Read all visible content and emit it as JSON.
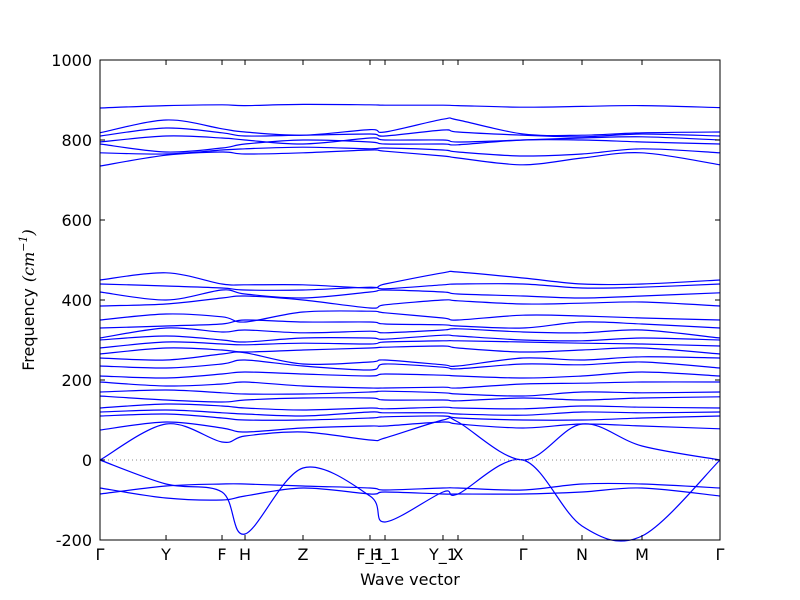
{
  "chart_data": {
    "type": "line",
    "title": "",
    "xlabel": "Wave vector",
    "ylabel": "Frequency",
    "ylabel_unit": "(cm^-1)",
    "ylim": [
      -200,
      1000
    ],
    "yticks": [
      -200,
      0,
      200,
      400,
      600,
      800,
      1000
    ],
    "xticks": [
      {
        "label": "Γ",
        "x": 0.0
      },
      {
        "label": "Y",
        "x": 0.1065
      },
      {
        "label": "F",
        "x": 0.1968
      },
      {
        "label": "H",
        "x": 0.2339
      },
      {
        "label": "Z",
        "x": 0.3274
      },
      {
        "label": "F_1",
        "x": 0.4355
      },
      {
        "label": "H_1",
        "x": 0.4597
      },
      {
        "label": "Y_1",
        "x": 0.5532
      },
      {
        "label": "X",
        "x": 0.5774
      },
      {
        "label": "Γ",
        "x": 0.6823
      },
      {
        "label": "N",
        "x": 0.7774
      },
      {
        "label": "M",
        "x": 0.8742
      },
      {
        "label": "Γ",
        "x": 1.0
      }
    ],
    "zero_line": true,
    "grid": false,
    "color": "#0000ff",
    "series": [
      {
        "x": [
          0,
          0.1065,
          0.1968,
          0.2339,
          0.3274,
          0.4355,
          0.4597,
          0.5532,
          0.5774,
          0.6823,
          0.7774,
          0.8742,
          1.0
        ],
        "values": [
          880,
          886,
          888,
          886,
          889,
          888,
          887,
          887,
          886,
          882,
          884,
          886,
          881
        ]
      },
      {
        "x": [
          0,
          0.1065,
          0.1968,
          0.2339,
          0.3274,
          0.4355,
          0.4597,
          0.5532,
          0.5774,
          0.6823,
          0.7774,
          0.8742,
          1.0
        ],
        "values": [
          818,
          850,
          828,
          820,
          812,
          826,
          820,
          852,
          850,
          815,
          812,
          818,
          820
        ]
      },
      {
        "x": [
          0,
          0.1065,
          0.1968,
          0.2339,
          0.3274,
          0.4355,
          0.4597,
          0.5532,
          0.5774,
          0.6823,
          0.7774,
          0.8742,
          1.0
        ],
        "values": [
          810,
          830,
          818,
          810,
          812,
          815,
          810,
          825,
          820,
          812,
          808,
          815,
          810
        ]
      },
      {
        "x": [
          0,
          0.1065,
          0.1968,
          0.2339,
          0.3274,
          0.4355,
          0.4597,
          0.5532,
          0.5774,
          0.6823,
          0.7774,
          0.8742,
          1.0
        ],
        "values": [
          795,
          810,
          805,
          800,
          790,
          805,
          800,
          800,
          795,
          800,
          805,
          808,
          800
        ]
      },
      {
        "x": [
          0,
          0.1065,
          0.1968,
          0.2339,
          0.3274,
          0.4355,
          0.4597,
          0.5532,
          0.5774,
          0.6823,
          0.7774,
          0.8742,
          1.0
        ],
        "values": [
          790,
          770,
          780,
          790,
          800,
          795,
          790,
          790,
          788,
          800,
          800,
          795,
          790
        ]
      },
      {
        "x": [
          0,
          0.1065,
          0.1968,
          0.2339,
          0.3274,
          0.4355,
          0.4597,
          0.5532,
          0.5774,
          0.6823,
          0.7774,
          0.8742,
          1.0
        ],
        "values": [
          768,
          765,
          775,
          778,
          782,
          778,
          780,
          775,
          770,
          760,
          765,
          778,
          768
        ]
      },
      {
        "x": [
          0,
          0.1065,
          0.1968,
          0.2339,
          0.3274,
          0.4355,
          0.4597,
          0.5532,
          0.5774,
          0.6823,
          0.7774,
          0.8742,
          1.0
        ],
        "values": [
          735,
          762,
          770,
          765,
          768,
          775,
          772,
          760,
          755,
          738,
          755,
          768,
          738
        ]
      },
      {
        "x": [
          0,
          0.1065,
          0.1968,
          0.2339,
          0.3274,
          0.4355,
          0.4597,
          0.5532,
          0.5774,
          0.6823,
          0.7774,
          0.8742,
          1.0
        ],
        "values": [
          450,
          468,
          440,
          438,
          438,
          430,
          440,
          468,
          470,
          455,
          440,
          440,
          450
        ]
      },
      {
        "x": [
          0,
          0.1065,
          0.1968,
          0.2339,
          0.3274,
          0.4355,
          0.4597,
          0.5532,
          0.5774,
          0.6823,
          0.7774,
          0.8742,
          1.0
        ],
        "values": [
          440,
          435,
          430,
          425,
          425,
          432,
          428,
          438,
          440,
          440,
          430,
          432,
          440
        ]
      },
      {
        "x": [
          0,
          0.1065,
          0.1968,
          0.2339,
          0.3274,
          0.4355,
          0.4597,
          0.5532,
          0.5774,
          0.6823,
          0.7774,
          0.8742,
          1.0
        ],
        "values": [
          420,
          400,
          425,
          415,
          405,
          420,
          425,
          420,
          415,
          410,
          405,
          410,
          418
        ]
      },
      {
        "x": [
          0,
          0.1065,
          0.1968,
          0.2339,
          0.3274,
          0.4355,
          0.4597,
          0.5532,
          0.5774,
          0.6823,
          0.7774,
          0.8742,
          1.0
        ],
        "values": [
          385,
          390,
          405,
          410,
          400,
          380,
          388,
          400,
          398,
          390,
          392,
          395,
          385
        ]
      },
      {
        "x": [
          0,
          0.1065,
          0.1968,
          0.2339,
          0.3274,
          0.4355,
          0.4597,
          0.5532,
          0.5774,
          0.6823,
          0.7774,
          0.8742,
          1.0
        ],
        "values": [
          350,
          365,
          358,
          345,
          370,
          372,
          368,
          355,
          350,
          362,
          360,
          355,
          350
        ]
      },
      {
        "x": [
          0,
          0.1065,
          0.1968,
          0.2339,
          0.3274,
          0.4355,
          0.4597,
          0.5532,
          0.5774,
          0.6823,
          0.7774,
          0.8742,
          1.0
        ],
        "values": [
          330,
          335,
          340,
          350,
          345,
          345,
          340,
          338,
          335,
          330,
          345,
          340,
          330
        ]
      },
      {
        "x": [
          0,
          0.1065,
          0.1968,
          0.2339,
          0.3274,
          0.4355,
          0.4597,
          0.5532,
          0.5774,
          0.6823,
          0.7774,
          0.8742,
          1.0
        ],
        "values": [
          305,
          330,
          320,
          325,
          318,
          322,
          318,
          325,
          328,
          320,
          318,
          325,
          305
        ]
      },
      {
        "x": [
          0,
          0.1065,
          0.1968,
          0.2339,
          0.3274,
          0.4355,
          0.4597,
          0.5532,
          0.5774,
          0.6823,
          0.7774,
          0.8742,
          1.0
        ],
        "values": [
          300,
          310,
          300,
          295,
          305,
          305,
          302,
          312,
          310,
          300,
          298,
          305,
          300
        ]
      },
      {
        "x": [
          0,
          0.1065,
          0.1968,
          0.2339,
          0.3274,
          0.4355,
          0.4597,
          0.5532,
          0.5774,
          0.6823,
          0.7774,
          0.8742,
          1.0
        ],
        "values": [
          280,
          295,
          290,
          288,
          292,
          290,
          295,
          298,
          298,
          295,
          292,
          290,
          285
        ]
      },
      {
        "x": [
          0,
          0.1065,
          0.1968,
          0.2339,
          0.3274,
          0.4355,
          0.4597,
          0.5532,
          0.5774,
          0.6823,
          0.7774,
          0.8742,
          1.0
        ],
        "values": [
          265,
          280,
          275,
          270,
          275,
          280,
          282,
          285,
          280,
          270,
          275,
          280,
          265
        ]
      },
      {
        "x": [
          0,
          0.1065,
          0.1968,
          0.2339,
          0.3274,
          0.4355,
          0.4597,
          0.5532,
          0.5774,
          0.6823,
          0.7774,
          0.8742,
          1.0
        ],
        "values": [
          255,
          250,
          265,
          268,
          240,
          245,
          250,
          238,
          235,
          255,
          250,
          258,
          255
        ]
      },
      {
        "x": [
          0,
          0.1065,
          0.1968,
          0.2339,
          0.3274,
          0.4355,
          0.4597,
          0.5532,
          0.5774,
          0.6823,
          0.7774,
          0.8742,
          1.0
        ],
        "values": [
          235,
          230,
          240,
          250,
          235,
          225,
          240,
          232,
          228,
          240,
          238,
          245,
          230
        ]
      },
      {
        "x": [
          0,
          0.1065,
          0.1968,
          0.2339,
          0.3274,
          0.4355,
          0.4597,
          0.5532,
          0.5774,
          0.6823,
          0.7774,
          0.8742,
          1.0
        ],
        "values": [
          210,
          205,
          215,
          220,
          215,
          210,
          215,
          212,
          210,
          205,
          210,
          220,
          210
        ]
      },
      {
        "x": [
          0,
          0.1065,
          0.1968,
          0.2339,
          0.3274,
          0.4355,
          0.4597,
          0.5532,
          0.5774,
          0.6823,
          0.7774,
          0.8742,
          1.0
        ],
        "values": [
          195,
          185,
          190,
          195,
          185,
          180,
          180,
          182,
          180,
          190,
          192,
          195,
          195
        ]
      },
      {
        "x": [
          0,
          0.1065,
          0.1968,
          0.2339,
          0.3274,
          0.4355,
          0.4597,
          0.5532,
          0.5774,
          0.6823,
          0.7774,
          0.8742,
          1.0
        ],
        "values": [
          170,
          175,
          168,
          165,
          165,
          170,
          172,
          168,
          165,
          160,
          170,
          168,
          170
        ]
      },
      {
        "x": [
          0,
          0.1065,
          0.1968,
          0.2339,
          0.3274,
          0.4355,
          0.4597,
          0.5532,
          0.5774,
          0.6823,
          0.7774,
          0.8742,
          1.0
        ],
        "values": [
          160,
          150,
          145,
          150,
          155,
          155,
          150,
          150,
          148,
          155,
          150,
          155,
          158
        ]
      },
      {
        "x": [
          0,
          0.1065,
          0.1968,
          0.2339,
          0.3274,
          0.4355,
          0.4597,
          0.5532,
          0.5774,
          0.6823,
          0.7774,
          0.8742,
          1.0
        ],
        "values": [
          130,
          140,
          135,
          130,
          125,
          130,
          128,
          132,
          130,
          128,
          135,
          132,
          130
        ]
      },
      {
        "x": [
          0,
          0.1065,
          0.1968,
          0.2339,
          0.3274,
          0.4355,
          0.4597,
          0.5532,
          0.5774,
          0.6823,
          0.7774,
          0.8742,
          1.0
        ],
        "values": [
          120,
          125,
          118,
          115,
          110,
          120,
          118,
          118,
          115,
          112,
          120,
          118,
          120
        ]
      },
      {
        "x": [
          0,
          0.1065,
          0.1968,
          0.2339,
          0.3274,
          0.4355,
          0.4597,
          0.5532,
          0.5774,
          0.6823,
          0.7774,
          0.8742,
          1.0
        ],
        "values": [
          110,
          115,
          105,
          100,
          100,
          105,
          108,
          110,
          105,
          100,
          100,
          105,
          110
        ]
      },
      {
        "x": [
          0,
          0.1065,
          0.1968,
          0.2339,
          0.3274,
          0.4355,
          0.4597,
          0.5532,
          0.5774,
          0.6823,
          0.7774,
          0.8742,
          1.0
        ],
        "values": [
          75,
          95,
          80,
          70,
          80,
          85,
          85,
          95,
          90,
          80,
          90,
          85,
          78
        ]
      },
      {
        "x": [
          0,
          0.1065,
          0.1968,
          0.2339,
          0.3274,
          0.4355,
          0.4597,
          0.5532,
          0.5774,
          0.6823,
          0.7774,
          0.8742,
          1.0
        ],
        "values": [
          0,
          90,
          45,
          60,
          70,
          50,
          55,
          100,
          95,
          0,
          90,
          35,
          0
        ]
      },
      {
        "x": [
          0,
          0.1065,
          0.1968,
          0.2339,
          0.3274,
          0.4355,
          0.4597,
          0.5532,
          0.5774,
          0.6823,
          0.7774,
          0.8742,
          1.0
        ],
        "values": [
          0,
          -60,
          -80,
          -185,
          -20,
          -90,
          -155,
          -80,
          -85,
          0,
          -165,
          -190,
          0
        ]
      },
      {
        "x": [
          0,
          0.1065,
          0.1968,
          0.2339,
          0.3274,
          0.4355,
          0.4597,
          0.5532,
          0.5774,
          0.6823,
          0.7774,
          0.8742,
          1.0
        ],
        "values": [
          -70,
          -95,
          -100,
          -90,
          -70,
          -85,
          -80,
          -85,
          -85,
          -85,
          -80,
          -70,
          -90
        ]
      },
      {
        "x": [
          0,
          0.1065,
          0.1968,
          0.2339,
          0.3274,
          0.4355,
          0.4597,
          0.5532,
          0.5774,
          0.6823,
          0.7774,
          0.8742,
          1.0
        ],
        "values": [
          -85,
          -65,
          -60,
          -60,
          -65,
          -70,
          -75,
          -70,
          -70,
          -75,
          -60,
          -60,
          -70
        ]
      }
    ]
  }
}
